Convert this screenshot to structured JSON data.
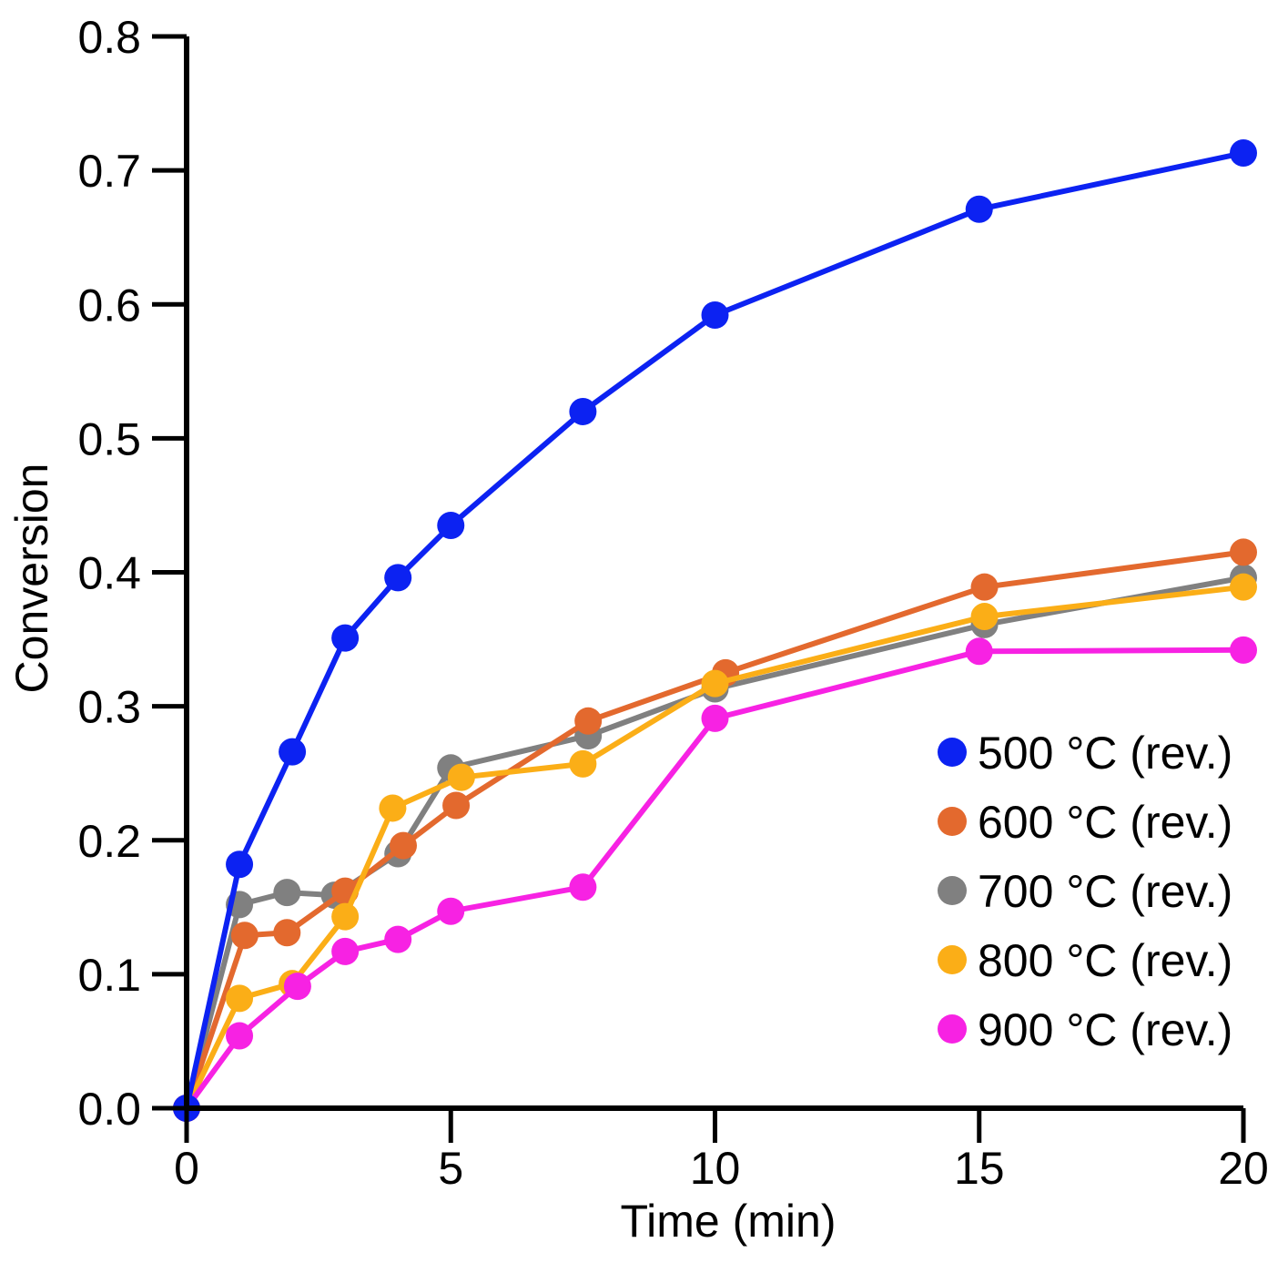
{
  "chart_data": {
    "type": "line",
    "title": "",
    "xlabel": "Time (min)",
    "ylabel": "Conversion",
    "xlim": [
      0,
      20
    ],
    "ylim": [
      0,
      0.8
    ],
    "x_ticks": [
      {
        "value": 0,
        "label": "0"
      },
      {
        "value": 5,
        "label": "5"
      },
      {
        "value": 10,
        "label": "10"
      },
      {
        "value": 15,
        "label": "15"
      },
      {
        "value": 20,
        "label": "20"
      }
    ],
    "y_ticks": [
      {
        "value": 0,
        "label": "0.0"
      },
      {
        "value": 0.1,
        "label": "0.1"
      },
      {
        "value": 0.2,
        "label": "0.2"
      },
      {
        "value": 0.3,
        "label": "0.3"
      },
      {
        "value": 0.4,
        "label": "0.4"
      },
      {
        "value": 0.5,
        "label": "0.5"
      },
      {
        "value": 0.6,
        "label": "0.6"
      },
      {
        "value": 0.7,
        "label": "0.7"
      },
      {
        "value": 0.8,
        "label": "0.8"
      }
    ],
    "grid": false,
    "legend_position": "bottom-right",
    "series": [
      {
        "name": "700 °C (rev.)",
        "color": "#808080",
        "x": [
          0,
          1,
          1.9,
          2.8,
          4,
          5,
          7.6,
          10,
          15.1,
          20
        ],
        "y": [
          0,
          0.152,
          0.161,
          0.159,
          0.19,
          0.254,
          0.278,
          0.313,
          0.361,
          0.396
        ]
      },
      {
        "name": "600 °C (rev.)",
        "color": "#e3692e",
        "x": [
          0,
          1.1,
          1.9,
          3,
          4.1,
          5.1,
          7.6,
          10.2,
          15.1,
          20
        ],
        "y": [
          0,
          0.129,
          0.131,
          0.162,
          0.196,
          0.226,
          0.289,
          0.325,
          0.389,
          0.415
        ]
      },
      {
        "name": "800 °C (rev.)",
        "color": "#fbae17",
        "x": [
          0,
          1,
          2,
          3,
          3.9,
          5.2,
          7.5,
          10,
          15.1,
          20
        ],
        "y": [
          0,
          0.082,
          0.093,
          0.143,
          0.224,
          0.247,
          0.257,
          0.317,
          0.367,
          0.389
        ]
      },
      {
        "name": "900 °C (rev.)",
        "color": "#f722e3",
        "x": [
          0,
          1,
          2.1,
          3,
          4,
          5,
          7.5,
          10,
          15,
          20
        ],
        "y": [
          0,
          0.054,
          0.091,
          0.117,
          0.126,
          0.147,
          0.165,
          0.291,
          0.341,
          0.342
        ]
      },
      {
        "name": "500 °C (rev.)",
        "color": "#0c22f2",
        "x": [
          0,
          1,
          2,
          3,
          4,
          5,
          7.5,
          10,
          15,
          20
        ],
        "y": [
          0,
          0.182,
          0.266,
          0.351,
          0.396,
          0.435,
          0.52,
          0.592,
          0.671,
          0.713
        ]
      }
    ],
    "legend_order": [
      "500 °C (rev.)",
      "600 °C (rev.)",
      "700 °C (rev.)",
      "800 °C (rev.)",
      "900 °C (rev.)"
    ]
  }
}
